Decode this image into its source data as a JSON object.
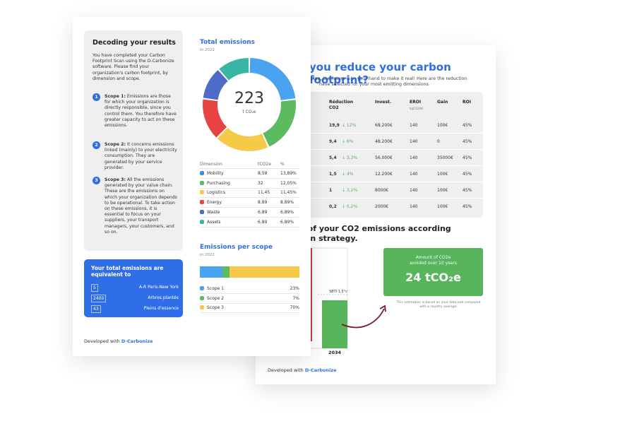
{
  "back_page": {
    "title": "you reduce your carbon footprint?",
    "subtitle_line1": "plan, the future is in your hand to make it real! Here are the reduction",
    "subtitle_line2": "have selected for your most emitting dimensions",
    "table": {
      "headers": {
        "reduction": "Réduction",
        "reduction_unit": "CO2",
        "invest": "Invest.",
        "eroi": "EROI",
        "eroi_unit": "kgCO2/k€",
        "gain": "Gain",
        "roi": "ROI"
      },
      "rows": [
        {
          "reduction": "19,9",
          "pct": "12%",
          "invest": "68.200€",
          "eroi": "140",
          "gain": "100€",
          "roi": "45%"
        },
        {
          "reduction": "9,4",
          "pct": "6%",
          "invest": "48.200€",
          "eroi": "140",
          "gain": "0",
          "roi": "45%"
        },
        {
          "reduction": "5,4",
          "pct": "3,3%",
          "invest": "56.000€",
          "eroi": "140",
          "gain": "35000€",
          "roi": "45%"
        },
        {
          "reduction": "1,5",
          "pct": "4%",
          "invest": "12.200€",
          "eroi": "140",
          "gain": "100€",
          "roi": "45%"
        },
        {
          "reduction": "1",
          "pct": "3,2%",
          "invest": "8000€",
          "eroi": "140",
          "gain": "100€",
          "roi": "45%"
        },
        {
          "reduction": "0,2",
          "pct": "0,2%",
          "invest": "2000€",
          "eroi": "140",
          "gain": "100€",
          "roi": "45%"
        }
      ]
    },
    "section_title_line1": "n of your CO2 emissions according",
    "section_title_line2": "bon strategy.",
    "sbti_label": "SBTI 1,5°c",
    "year_label": "2034",
    "avoided_label_line1": "Amount of CO2e",
    "avoided_label_line2": "avoided over 10 years",
    "avoided_value": "24 tCO₂e",
    "note": "This estimation is based on your data and compared with a country average.",
    "footer_prefix": "Developed with",
    "footer_brand": "D-Carbonize"
  },
  "front_page": {
    "left_panel": {
      "title": "Decoding your results",
      "intro": "You have completed your Carbon Footprint Scan using the D-Carbonize software. Please find your organization's carbon footprint, by dimension and scope.",
      "scopes": [
        {
          "num": "1",
          "label": "Scope 1:",
          "text": "Emissions are those for which your organization is directly responsible, since you control them. You therefore have greater capacity to act on these emissions."
        },
        {
          "num": "2",
          "label": "Scope 2:",
          "text": "It concerns emissions linked (mainly) to your electricity consumption. They are generated by your service provider."
        },
        {
          "num": "3",
          "label": "Scope 3:",
          "text": "All the emissions generated by your value chain. These are the emissions on which your organization depends to be operational. To take action on these emissions, it is essential to focus on your suppliers, your transport managers, your customers, and so on."
        }
      ]
    },
    "equivalent": {
      "title": "Your total emissions are equivalent to",
      "rows": [
        {
          "value": "5",
          "label": "A-R Paris-New York"
        },
        {
          "value": "2400",
          "label": "Arbres plantés"
        },
        {
          "value": "43",
          "label": "Pleins     d'essence"
        }
      ]
    },
    "total_emissions": {
      "title": "Total emissions",
      "subtitle": "In 2022",
      "total_value": "223",
      "total_unit": "t CO₂e"
    },
    "dimension_table": {
      "headers": [
        "Dimension",
        "tCO2e",
        "%"
      ],
      "rows": [
        {
          "name": "Mobility",
          "value": "8,59",
          "pct": "13,89%",
          "color": "#3b8fe6"
        },
        {
          "name": "Purchasing",
          "value": "32",
          "pct": "12,05%",
          "color": "#5cbb5f"
        },
        {
          "name": "Logistics",
          "value": "11,45",
          "pct": "11,45%",
          "color": "#f7c948"
        },
        {
          "name": "Energy",
          "value": "8,89",
          "pct": "8,89%",
          "color": "#e84343"
        },
        {
          "name": "Waste",
          "value": "6,89",
          "pct": "6,89%",
          "color": "#4e6cc7"
        },
        {
          "name": "Assets",
          "value": "6,89",
          "pct": "6,89%",
          "color": "#39b5a4"
        }
      ]
    },
    "scope_section": {
      "title": "Emissions per scope",
      "subtitle": "In 2022",
      "rows": [
        {
          "name": "Scope 1",
          "pct": "23%",
          "share": 0.23,
          "color": "#4aa3f0"
        },
        {
          "name": "Scope 2",
          "pct": "7%",
          "share": 0.07,
          "color": "#5cbb5f"
        },
        {
          "name": "Scope 3",
          "pct": "70%",
          "share": 0.7,
          "color": "#f7c948"
        }
      ]
    },
    "footer_prefix": "Developed with",
    "footer_brand": "D-Carbonize"
  },
  "chart_data": [
    {
      "type": "pie",
      "title": "Total emissions",
      "categories": [
        "Mobility",
        "Purchasing",
        "Logistics",
        "Energy",
        "Waste",
        "Assets"
      ],
      "values": [
        13.89,
        12.05,
        11.45,
        8.89,
        6.89,
        6.89
      ],
      "colors": [
        "#4aa3f0",
        "#5cbb5f",
        "#f7c948",
        "#e84343",
        "#4e6cc7",
        "#39b5a4"
      ]
    },
    {
      "type": "bar",
      "title": "Emissions per scope",
      "categories": [
        "Scope 1",
        "Scope 2",
        "Scope 3"
      ],
      "values": [
        23,
        7,
        70
      ]
    }
  ]
}
